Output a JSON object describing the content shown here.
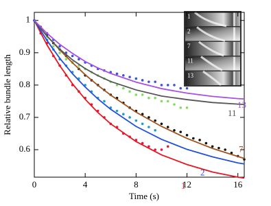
{
  "chart_data": {
    "type": "line",
    "x_label": "Time (s)",
    "y_label": "Relative bundle length",
    "xlim": [
      0,
      16.5
    ],
    "ylim": [
      0.515,
      1.025
    ],
    "xticks": [
      0,
      4,
      8,
      12,
      16
    ],
    "yticks": [
      0.6,
      0.7,
      0.8,
      0.9,
      1
    ],
    "x": [
      0,
      1,
      2,
      3,
      4,
      5,
      6,
      8,
      10,
      12,
      14,
      16,
      16.5
    ],
    "series": [
      {
        "name": "1",
        "color": "#e8141e",
        "values": [
          1,
          0.924,
          0.86,
          0.804,
          0.756,
          0.715,
          0.68,
          0.625,
          0.584,
          0.554,
          0.531,
          0.515,
          0.512
        ]
      },
      {
        "name": "2",
        "color": "#1f4fe0",
        "values": [
          1,
          0.938,
          0.883,
          0.835,
          0.794,
          0.757,
          0.725,
          0.672,
          0.632,
          0.601,
          0.578,
          0.559,
          0.556
        ]
      },
      {
        "name": "7",
        "color": "#a0521a",
        "values": [
          1,
          0.952,
          0.909,
          0.869,
          0.832,
          0.799,
          0.769,
          0.716,
          0.672,
          0.635,
          0.604,
          0.579,
          0.573
        ]
      },
      {
        "name": "11",
        "color": "#555555",
        "values": [
          1,
          0.951,
          0.911,
          0.878,
          0.851,
          0.829,
          0.811,
          0.785,
          0.766,
          0.755,
          0.746,
          0.741,
          0.74
        ]
      },
      {
        "name": "13",
        "color": "#a64ee8",
        "values": [
          1,
          0.96,
          0.926,
          0.898,
          0.873,
          0.853,
          0.836,
          0.809,
          0.789,
          0.775,
          0.765,
          0.758,
          0.757
        ]
      }
    ],
    "scatter_series": [
      {
        "color": "#e8143c",
        "x": [
          0,
          0.5,
          1,
          1.5,
          2,
          2.5,
          3,
          3.5,
          4,
          4.5,
          5,
          5.5,
          6,
          6.5,
          7,
          7.5,
          8,
          8.5,
          9,
          9.5,
          10,
          10.5
        ],
        "values": [
          1,
          0.96,
          0.93,
          0.89,
          0.86,
          0.83,
          0.8,
          0.78,
          0.76,
          0.74,
          0.72,
          0.7,
          0.68,
          0.67,
          0.65,
          0.64,
          0.63,
          0.62,
          0.61,
          0.6,
          0.6,
          0.61
        ]
      },
      {
        "color": "#1aa0c8",
        "x": [
          0,
          0.5,
          1,
          1.5,
          2,
          2.5,
          3,
          3.5,
          4,
          4.5,
          5,
          5.5,
          6,
          6.5,
          7,
          7.5,
          8,
          8.5,
          9,
          9.5
        ],
        "values": [
          1,
          0.97,
          0.94,
          0.91,
          0.88,
          0.86,
          0.84,
          0.82,
          0.8,
          0.78,
          0.76,
          0.75,
          0.73,
          0.72,
          0.71,
          0.7,
          0.69,
          0.68,
          0.67,
          0.66
        ]
      },
      {
        "color": "#111111",
        "x": [
          0,
          0.5,
          1,
          1.5,
          2,
          2.5,
          3,
          3.5,
          4,
          4.5,
          5,
          5.5,
          6,
          6.5,
          7,
          7.5,
          8,
          8.5,
          9,
          9.5,
          10,
          10.5,
          11,
          11.5,
          12,
          12.5,
          13,
          13.5,
          14,
          14.5,
          15,
          15.5,
          16,
          16.5
        ],
        "values": [
          1,
          0.98,
          0.955,
          0.93,
          0.91,
          0.89,
          0.87,
          0.85,
          0.83,
          0.815,
          0.8,
          0.785,
          0.77,
          0.76,
          0.745,
          0.73,
          0.72,
          0.71,
          0.7,
          0.69,
          0.68,
          0.67,
          0.66,
          0.655,
          0.645,
          0.635,
          0.63,
          0.62,
          0.61,
          0.605,
          0.6,
          0.59,
          0.58,
          0.57
        ]
      },
      {
        "color": "#7ee05a",
        "x": [
          0,
          0.5,
          1,
          1.5,
          2,
          2.5,
          3,
          3.5,
          4,
          4.5,
          5,
          5.5,
          6,
          6.5,
          7,
          7.5,
          8,
          8.5,
          9,
          9.5,
          10,
          10.5,
          11,
          11.5,
          12
        ],
        "values": [
          1,
          0.97,
          0.95,
          0.92,
          0.9,
          0.88,
          0.87,
          0.86,
          0.85,
          0.84,
          0.83,
          0.82,
          0.81,
          0.8,
          0.79,
          0.78,
          0.77,
          0.77,
          0.76,
          0.76,
          0.75,
          0.75,
          0.74,
          0.73,
          0.73
        ]
      },
      {
        "color": "#3a52e0",
        "x": [
          0,
          0.5,
          1,
          1.5,
          2,
          2.5,
          3,
          3.5,
          4,
          4.5,
          5,
          5.5,
          6,
          6.5,
          7,
          7.5,
          8,
          8.5,
          9,
          9.5,
          10,
          10.5,
          11,
          11.5,
          12
        ],
        "values": [
          1,
          0.98,
          0.96,
          0.94,
          0.92,
          0.9,
          0.89,
          0.88,
          0.87,
          0.86,
          0.85,
          0.845,
          0.84,
          0.835,
          0.83,
          0.825,
          0.82,
          0.815,
          0.81,
          0.81,
          0.8,
          0.8,
          0.8,
          0.79,
          0.79
        ]
      }
    ]
  },
  "inset": {
    "labels": [
      "1",
      "2",
      "7",
      "11",
      "13"
    ]
  }
}
